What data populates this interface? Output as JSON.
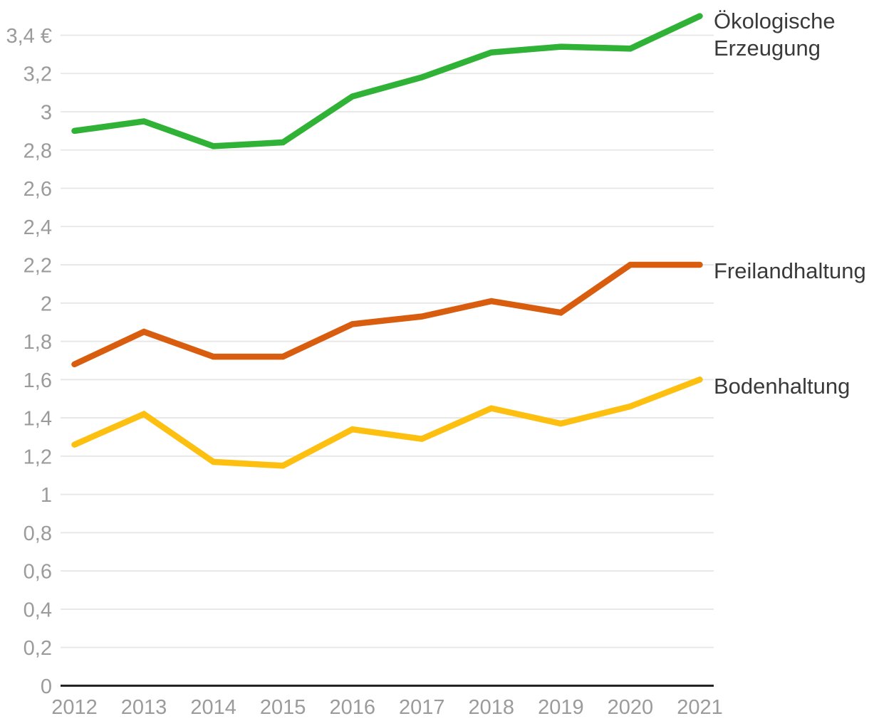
{
  "chart_data": {
    "type": "line",
    "x": [
      2012,
      2013,
      2014,
      2015,
      2016,
      2017,
      2018,
      2019,
      2020,
      2021
    ],
    "x_tick_labels": [
      "2012",
      "2013",
      "2014",
      "2015",
      "2016",
      "2017",
      "2018",
      "2019",
      "2020",
      "2021"
    ],
    "series": [
      {
        "name": "Ökologische Erzeugung",
        "color": "#2fb235",
        "values": [
          2.9,
          2.95,
          2.82,
          2.84,
          3.08,
          3.18,
          3.31,
          3.34,
          3.33,
          3.5
        ]
      },
      {
        "name": "Freilandhaltung",
        "color": "#d85d0e",
        "values": [
          1.68,
          1.85,
          1.72,
          1.72,
          1.89,
          1.93,
          2.01,
          1.95,
          2.2,
          2.2
        ]
      },
      {
        "name": "Bodenhaltung",
        "color": "#fdc010",
        "values": [
          1.26,
          1.42,
          1.17,
          1.15,
          1.34,
          1.29,
          1.45,
          1.37,
          1.46,
          1.6
        ]
      }
    ],
    "ylim": [
      0,
      3.5
    ],
    "y_ticks": [
      {
        "v": 0,
        "label": "0"
      },
      {
        "v": 0.2,
        "label": "0,2"
      },
      {
        "v": 0.4,
        "label": "0,4"
      },
      {
        "v": 0.6,
        "label": "0,6"
      },
      {
        "v": 0.8,
        "label": "0,8"
      },
      {
        "v": 1,
        "label": "1"
      },
      {
        "v": 1.2,
        "label": "1,2"
      },
      {
        "v": 1.4,
        "label": "1,4"
      },
      {
        "v": 1.6,
        "label": "1,6"
      },
      {
        "v": 1.8,
        "label": "1,8"
      },
      {
        "v": 2,
        "label": "2"
      },
      {
        "v": 2.2,
        "label": "2,2"
      },
      {
        "v": 2.4,
        "label": "2,4"
      },
      {
        "v": 2.6,
        "label": "2,6"
      },
      {
        "v": 2.8,
        "label": "2,8"
      },
      {
        "v": 3,
        "label": "3"
      },
      {
        "v": 3.2,
        "label": "3,2"
      },
      {
        "v": 3.4,
        "label": "3,4 €"
      }
    ],
    "grid": true,
    "legend_position": "right of line ends",
    "unit": "€"
  },
  "styles": {
    "background": "#ffffff",
    "grid_color": "#e6e6e6",
    "axis_line_color": "#1f1f1f",
    "tick_label_color": "#9b9b9b",
    "legend_text_color": "#3a3a3a"
  }
}
